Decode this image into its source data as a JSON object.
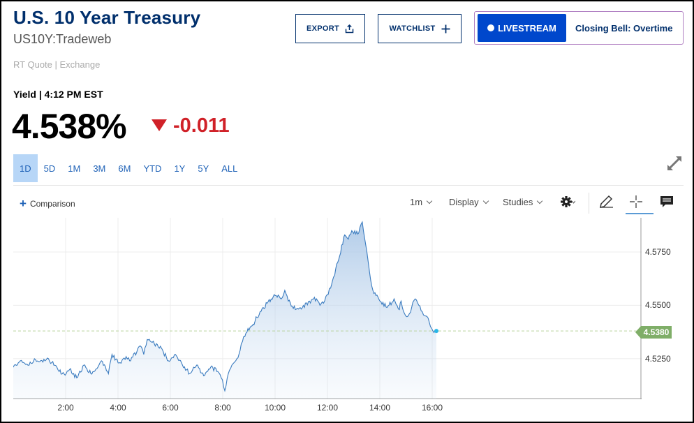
{
  "header": {
    "title": "U.S. 10 Year Treasury",
    "subtitle": "US10Y:Tradeweb",
    "quote_source": "RT Quote | Exchange"
  },
  "actions": {
    "export_label": "EXPORT",
    "watchlist_label": "WATCHLIST",
    "livestream_label": "LIVESTREAM",
    "livestream_show": "Closing Bell: Overtime"
  },
  "quote": {
    "yield_label": "Yield | 4:12 PM EST",
    "price": "4.538%",
    "change": "-0.011",
    "change_color": "#d02128"
  },
  "ranges": [
    {
      "label": "1D",
      "active": true
    },
    {
      "label": "5D",
      "active": false
    },
    {
      "label": "1M",
      "active": false
    },
    {
      "label": "3M",
      "active": false
    },
    {
      "label": "6M",
      "active": false
    },
    {
      "label": "YTD",
      "active": false
    },
    {
      "label": "1Y",
      "active": false
    },
    {
      "label": "5Y",
      "active": false
    },
    {
      "label": "ALL",
      "active": false
    }
  ],
  "toolbar": {
    "comparison_label": "Comparison",
    "interval_label": "1m",
    "display_label": "Display",
    "studies_label": "Studies"
  },
  "icons": {
    "export": "share-icon",
    "watchlist": "plus-icon",
    "expand": "expand-icon",
    "settings": "gear-icon",
    "draw": "pencil-icon",
    "crosshair": "crosshair-icon",
    "comment": "comment-icon"
  },
  "chart_data": {
    "type": "area",
    "x_ticks": [
      "2:00",
      "4:00",
      "6:00",
      "8:00",
      "10:00",
      "12:00",
      "14:00",
      "16:00"
    ],
    "y_ticks": [
      "4.5250",
      "4.5500",
      "4.5750"
    ],
    "last_value_label": "4.5380",
    "ylim": [
      4.506,
      4.591
    ],
    "x_range_minutes": [
      0,
      1200
    ],
    "line_color": "#3a7bbf",
    "fill_color": "#d6e5f5",
    "reference_line": 4.538,
    "x": [
      0,
      20,
      45,
      60,
      90,
      100,
      115,
      130,
      150,
      160,
      180,
      200,
      220,
      240,
      250,
      270,
      280,
      300,
      320,
      330,
      350,
      360,
      370,
      380,
      400,
      420,
      440,
      460,
      480,
      500,
      520,
      540,
      560,
      580,
      590,
      600,
      610,
      620,
      640,
      650,
      660,
      680,
      700,
      720,
      740,
      760,
      770,
      780,
      800,
      820,
      840,
      860,
      870,
      880,
      890,
      900,
      920,
      940,
      950,
      960,
      980,
      990,
      1000,
      1010,
      1020,
      1040,
      1060,
      1080,
      1095,
      1100,
      1110,
      1120,
      1130,
      1140,
      1150,
      1160,
      1170,
      1180,
      1190,
      1200
    ],
    "y": [
      4.521,
      4.524,
      4.522,
      4.525,
      4.524,
      4.525,
      4.522,
      4.519,
      4.518,
      4.52,
      4.516,
      4.522,
      4.518,
      4.521,
      4.524,
      4.518,
      4.527,
      4.523,
      4.526,
      4.524,
      4.528,
      4.531,
      4.527,
      4.534,
      4.532,
      4.53,
      4.524,
      4.527,
      4.522,
      4.518,
      4.522,
      4.517,
      4.521,
      4.519,
      4.516,
      4.51,
      4.518,
      4.522,
      4.527,
      4.533,
      4.537,
      4.541,
      4.547,
      4.551,
      4.555,
      4.553,
      4.557,
      4.552,
      4.548,
      4.549,
      4.552,
      4.553,
      4.55,
      4.551,
      4.555,
      4.558,
      4.57,
      4.583,
      4.581,
      4.585,
      4.584,
      4.589,
      4.578,
      4.566,
      4.557,
      4.552,
      4.549,
      4.553,
      4.548,
      4.552,
      4.546,
      4.545,
      4.549,
      4.553,
      4.55,
      4.547,
      4.545,
      4.542,
      4.538,
      4.538
    ]
  }
}
